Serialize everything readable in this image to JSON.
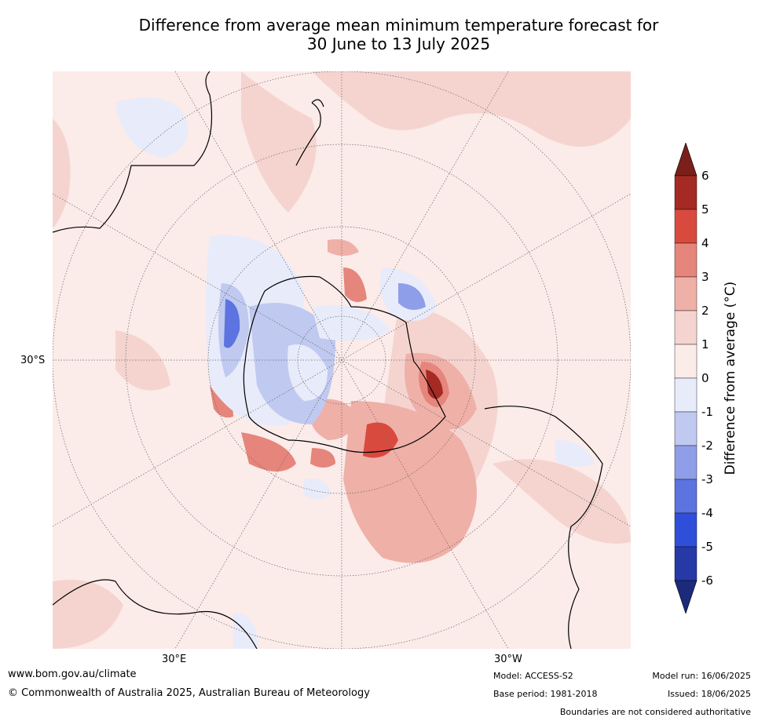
{
  "title": {
    "line1": "Difference from average mean minimum temperature forecast for",
    "line2": "30 June to 13 July 2025"
  },
  "map_labels": {
    "lat_30s": "30°S",
    "lon_30e": "30°E",
    "lon_30w": "30°W"
  },
  "colorbar": {
    "title": "Difference from average (°C)",
    "ticks": [
      "6",
      "5",
      "4",
      "3",
      "2",
      "1",
      "0",
      "-1",
      "-2",
      "-3",
      "-4",
      "-5",
      "-6"
    ],
    "colors": {
      "above_6": "#7a1f1a",
      "5_to_6": "#a52a24",
      "4_to_5": "#d94a3e",
      "3_to_4": "#e6857b",
      "2_to_3": "#efb0a8",
      "1_to_2": "#f5d4d0",
      "0_to_1": "#fbebe9",
      "m1_to_0": "#e8ebfa",
      "m2_to_m1": "#c0c9f0",
      "m3_to_m2": "#8f9ee8",
      "m4_to_m3": "#5c73e0",
      "m5_to_m4": "#2f4fdb",
      "m6_to_m5": "#2739a6",
      "below_m6": "#1c2a7c",
      "land_line": "#000000",
      "graticule": "#666666"
    }
  },
  "footer": {
    "url": "www.bom.gov.au/climate",
    "copyright": "© Commonwealth of Australia 2025, Australian Bureau of Meteorology",
    "model": "Model: ACCESS-S2",
    "base_period": "Base period: 1981-2018",
    "model_run": "Model run: 16/06/2025",
    "issued": "Issued: 18/06/2025",
    "boundaries": "Boundaries are not considered authoritative"
  }
}
